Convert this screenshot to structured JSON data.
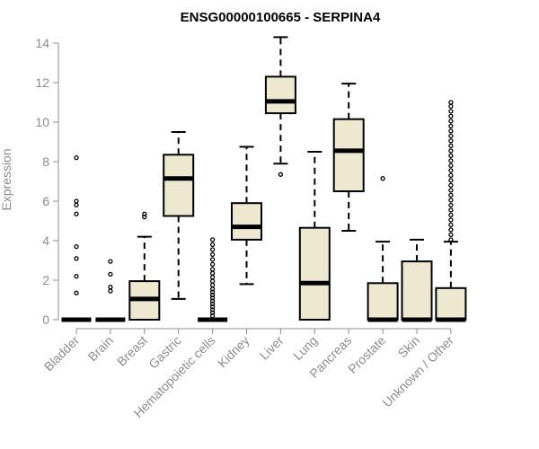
{
  "chart_data": {
    "type": "box",
    "title": "ENSG00000100665 - SERPINA4",
    "xlabel": "",
    "ylabel": "Expression",
    "ylim": [
      0,
      14
    ],
    "yticks": [
      0,
      2,
      4,
      6,
      8,
      10,
      12,
      14
    ],
    "categories": [
      "Bladder",
      "Brain",
      "Breast",
      "Gastric",
      "Hematopoietic cells",
      "Kidney",
      "Liver",
      "Lung",
      "Pancreas",
      "Prostate",
      "Skin",
      "Unknown / Other"
    ],
    "box_fill": "#efe8d0",
    "boxes": [
      {
        "name": "Bladder",
        "min": 0,
        "q1": 0,
        "median": 0,
        "q3": 0,
        "max": 0,
        "outliers": [
          8.2,
          6.0,
          5.8,
          5.35,
          3.7,
          3.1,
          2.2,
          1.35
        ]
      },
      {
        "name": "Brain",
        "min": 0,
        "q1": 0,
        "median": 0,
        "q3": 0,
        "max": 0,
        "outliers": [
          2.95,
          2.3,
          1.65,
          1.45
        ]
      },
      {
        "name": "Breast",
        "min": 0,
        "q1": 0,
        "median": 1.05,
        "q3": 1.95,
        "max": 4.2,
        "outliers": [
          5.2,
          5.35
        ]
      },
      {
        "name": "Gastric",
        "min": 1.05,
        "q1": 5.25,
        "median": 7.15,
        "q3": 8.35,
        "max": 9.5,
        "outliers": []
      },
      {
        "name": "Hematopoietic cells",
        "min": 0,
        "q1": 0,
        "median": 0,
        "q3": 0,
        "max": 0,
        "outliers": [
          4.05,
          3.8,
          3.55,
          3.3,
          3.05,
          2.8,
          2.55,
          2.35,
          2.15,
          1.95,
          1.75,
          1.55,
          1.4,
          1.25,
          1.1,
          0.95,
          0.8,
          0.65,
          0.5,
          0.35,
          0.2
        ]
      },
      {
        "name": "Kidney",
        "min": 1.8,
        "q1": 4.05,
        "median": 4.7,
        "q3": 5.9,
        "max": 8.75,
        "outliers": []
      },
      {
        "name": "Liver",
        "min": 7.9,
        "q1": 10.45,
        "median": 11.05,
        "q3": 12.3,
        "max": 14.3,
        "outliers": [
          7.35
        ]
      },
      {
        "name": "Lung",
        "min": 0,
        "q1": 0,
        "median": 1.85,
        "q3": 4.65,
        "max": 8.5,
        "outliers": []
      },
      {
        "name": "Pancreas",
        "min": 4.5,
        "q1": 6.5,
        "median": 8.55,
        "q3": 10.15,
        "max": 11.95,
        "outliers": []
      },
      {
        "name": "Prostate",
        "min": 0,
        "q1": 0,
        "median": 0,
        "q3": 1.85,
        "max": 3.95,
        "outliers": [
          7.15
        ]
      },
      {
        "name": "Skin",
        "min": 0,
        "q1": 0,
        "median": 0,
        "q3": 2.95,
        "max": 4.05,
        "outliers": []
      },
      {
        "name": "Unknown / Other",
        "min": 0,
        "q1": 0,
        "median": 0,
        "q3": 1.6,
        "max": 3.95,
        "outliers": [
          4.05,
          4.3,
          4.55,
          4.8,
          5.05,
          5.3,
          5.55,
          5.8,
          6.05,
          6.3,
          6.55,
          6.8,
          7.05,
          7.3,
          7.55,
          7.8,
          8.05,
          8.3,
          8.55,
          8.8,
          9.05,
          9.3,
          9.55,
          9.8,
          10.05,
          10.3,
          10.55,
          10.8,
          11.0
        ]
      }
    ]
  }
}
